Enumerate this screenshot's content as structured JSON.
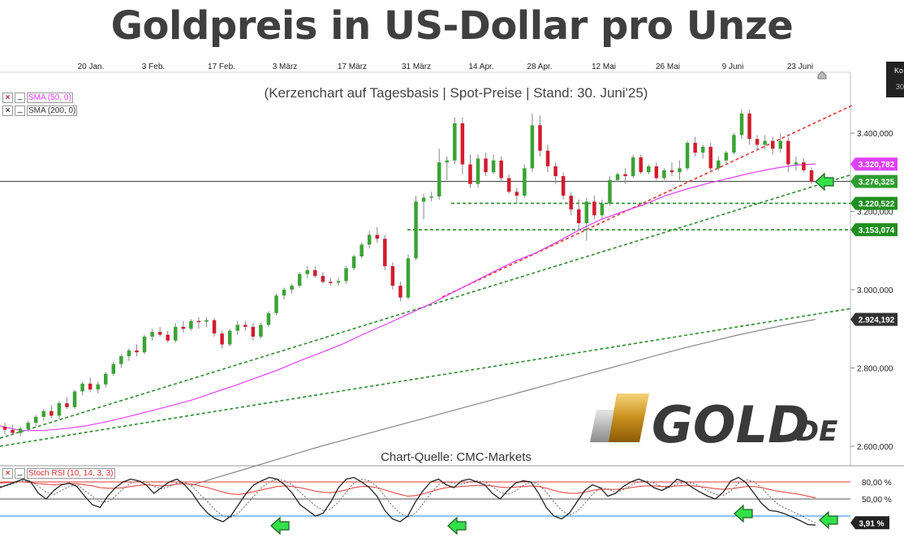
{
  "title": "Goldpreis in US-Dollar pro Unze",
  "subtitle": "(Kerzenchart auf Tagesbasis | Spot-Preise | Stand: 30. Juni'25)",
  "source": "Chart-Quelle: CMC-Markets",
  "logo_text": "GOLD",
  "logo_suffix": ".DE",
  "top_right_box": {
    "line1": "Ko",
    "line2": "30"
  },
  "legend": {
    "sma50": "SMA (50, 0)",
    "sma200": "SMA (200, 0)",
    "stoch": "Stoch RSI (10, 14, 3, 3)",
    "close_button": "×",
    "min_button": "_"
  },
  "chart_data": {
    "type": "candlestick",
    "x_tick_labels": [
      "20 Jan.",
      "3 Feb.",
      "17 Feb.",
      "3 März",
      "17 März",
      "31 März",
      "14 Apr.",
      "28 Apr.",
      "12 Mai",
      "26 Mai",
      "9 Juni",
      "23 Juni"
    ],
    "y_tick_labels": [
      "3.400,000",
      "3.200,000",
      "3.000,000",
      "2.800,000",
      "2.600,000"
    ],
    "y_ticks": [
      3400,
      3200,
      3000,
      2800,
      2600
    ],
    "ylim": [
      2580,
      3520
    ],
    "price_labels": [
      {
        "text": "3.320,782",
        "value": 3320.782,
        "color": "#e040fb",
        "role": "SMA 50"
      },
      {
        "text": "3.276,325",
        "value": 3276.325,
        "color": "#2e9e2e",
        "role": "Kurs"
      },
      {
        "text": "3.220,522",
        "value": 3220.522,
        "color": "#1f8f1f",
        "role": "Unterstützung"
      },
      {
        "text": "3.153,074",
        "value": 3153.074,
        "color": "#1f8f1f",
        "role": "Unterstützung"
      },
      {
        "text": "2.924,192",
        "value": 2924.192,
        "color": "#333333",
        "role": "SMA 200"
      }
    ],
    "candles": [
      {
        "o": 2650,
        "h": 2660,
        "l": 2630,
        "c": 2642
      },
      {
        "o": 2642,
        "h": 2655,
        "l": 2628,
        "c": 2634
      },
      {
        "o": 2634,
        "h": 2650,
        "l": 2625,
        "c": 2645
      },
      {
        "o": 2645,
        "h": 2665,
        "l": 2638,
        "c": 2660
      },
      {
        "o": 2660,
        "h": 2680,
        "l": 2652,
        "c": 2675
      },
      {
        "o": 2675,
        "h": 2695,
        "l": 2665,
        "c": 2690
      },
      {
        "o": 2690,
        "h": 2705,
        "l": 2672,
        "c": 2678
      },
      {
        "o": 2678,
        "h": 2715,
        "l": 2670,
        "c": 2710
      },
      {
        "o": 2710,
        "h": 2725,
        "l": 2695,
        "c": 2700
      },
      {
        "o": 2700,
        "h": 2745,
        "l": 2695,
        "c": 2740
      },
      {
        "o": 2740,
        "h": 2765,
        "l": 2730,
        "c": 2760
      },
      {
        "o": 2760,
        "h": 2775,
        "l": 2738,
        "c": 2745
      },
      {
        "o": 2745,
        "h": 2765,
        "l": 2735,
        "c": 2758
      },
      {
        "o": 2758,
        "h": 2790,
        "l": 2750,
        "c": 2785
      },
      {
        "o": 2785,
        "h": 2815,
        "l": 2780,
        "c": 2810
      },
      {
        "o": 2810,
        "h": 2835,
        "l": 2800,
        "c": 2830
      },
      {
        "o": 2830,
        "h": 2850,
        "l": 2818,
        "c": 2845
      },
      {
        "o": 2845,
        "h": 2860,
        "l": 2830,
        "c": 2840
      },
      {
        "o": 2840,
        "h": 2885,
        "l": 2835,
        "c": 2880
      },
      {
        "o": 2880,
        "h": 2900,
        "l": 2870,
        "c": 2892
      },
      {
        "o": 2892,
        "h": 2905,
        "l": 2880,
        "c": 2885
      },
      {
        "o": 2885,
        "h": 2895,
        "l": 2865,
        "c": 2870
      },
      {
        "o": 2870,
        "h": 2915,
        "l": 2865,
        "c": 2905
      },
      {
        "o": 2905,
        "h": 2920,
        "l": 2890,
        "c": 2900
      },
      {
        "o": 2900,
        "h": 2925,
        "l": 2895,
        "c": 2920
      },
      {
        "o": 2920,
        "h": 2930,
        "l": 2900,
        "c": 2918
      },
      {
        "o": 2918,
        "h": 2930,
        "l": 2905,
        "c": 2922
      },
      {
        "o": 2922,
        "h": 2928,
        "l": 2880,
        "c": 2888
      },
      {
        "o": 2888,
        "h": 2895,
        "l": 2850,
        "c": 2860
      },
      {
        "o": 2860,
        "h": 2900,
        "l": 2855,
        "c": 2895
      },
      {
        "o": 2895,
        "h": 2920,
        "l": 2885,
        "c": 2910
      },
      {
        "o": 2910,
        "h": 2920,
        "l": 2895,
        "c": 2905
      },
      {
        "o": 2905,
        "h": 2915,
        "l": 2870,
        "c": 2880
      },
      {
        "o": 2880,
        "h": 2915,
        "l": 2875,
        "c": 2910
      },
      {
        "o": 2910,
        "h": 2945,
        "l": 2905,
        "c": 2940
      },
      {
        "o": 2940,
        "h": 2990,
        "l": 2935,
        "c": 2985
      },
      {
        "o": 2985,
        "h": 3005,
        "l": 2975,
        "c": 3000
      },
      {
        "o": 3000,
        "h": 3015,
        "l": 2990,
        "c": 3010
      },
      {
        "o": 3010,
        "h": 3045,
        "l": 3005,
        "c": 3040
      },
      {
        "o": 3040,
        "h": 3060,
        "l": 3030,
        "c": 3050
      },
      {
        "o": 3050,
        "h": 3060,
        "l": 3030,
        "c": 3035
      },
      {
        "o": 3035,
        "h": 3045,
        "l": 3015,
        "c": 3020
      },
      {
        "o": 3020,
        "h": 3030,
        "l": 3010,
        "c": 3018
      },
      {
        "o": 3018,
        "h": 3030,
        "l": 3010,
        "c": 3022
      },
      {
        "o": 3022,
        "h": 3060,
        "l": 3015,
        "c": 3055
      },
      {
        "o": 3055,
        "h": 3090,
        "l": 3050,
        "c": 3085
      },
      {
        "o": 3085,
        "h": 3120,
        "l": 3080,
        "c": 3115
      },
      {
        "o": 3115,
        "h": 3150,
        "l": 3105,
        "c": 3140
      },
      {
        "o": 3140,
        "h": 3160,
        "l": 3120,
        "c": 3130
      },
      {
        "o": 3130,
        "h": 3140,
        "l": 3050,
        "c": 3060
      },
      {
        "o": 3060,
        "h": 3070,
        "l": 3000,
        "c": 3010
      },
      {
        "o": 3010,
        "h": 3020,
        "l": 2970,
        "c": 2980
      },
      {
        "o": 2980,
        "h": 3090,
        "l": 2975,
        "c": 3080
      },
      {
        "o": 3080,
        "h": 3240,
        "l": 3075,
        "c": 3225
      },
      {
        "o": 3225,
        "h": 3245,
        "l": 3180,
        "c": 3235
      },
      {
        "o": 3235,
        "h": 3250,
        "l": 3225,
        "c": 3238
      },
      {
        "o": 3238,
        "h": 3360,
        "l": 3230,
        "c": 3325
      },
      {
        "o": 3325,
        "h": 3340,
        "l": 3280,
        "c": 3330
      },
      {
        "o": 3330,
        "h": 3440,
        "l": 3320,
        "c": 3425
      },
      {
        "o": 3425,
        "h": 3440,
        "l": 3295,
        "c": 3320
      },
      {
        "o": 3320,
        "h": 3345,
        "l": 3260,
        "c": 3270
      },
      {
        "o": 3270,
        "h": 3345,
        "l": 3260,
        "c": 3335
      },
      {
        "o": 3335,
        "h": 3350,
        "l": 3290,
        "c": 3300
      },
      {
        "o": 3300,
        "h": 3345,
        "l": 3295,
        "c": 3330
      },
      {
        "o": 3330,
        "h": 3340,
        "l": 3275,
        "c": 3285
      },
      {
        "o": 3285,
        "h": 3295,
        "l": 3245,
        "c": 3250
      },
      {
        "o": 3250,
        "h": 3260,
        "l": 3220,
        "c": 3240
      },
      {
        "o": 3240,
        "h": 3320,
        "l": 3235,
        "c": 3310
      },
      {
        "o": 3310,
        "h": 3450,
        "l": 3300,
        "c": 3420
      },
      {
        "o": 3420,
        "h": 3445,
        "l": 3340,
        "c": 3355
      },
      {
        "o": 3355,
        "h": 3370,
        "l": 3300,
        "c": 3315
      },
      {
        "o": 3315,
        "h": 3325,
        "l": 3270,
        "c": 3290
      },
      {
        "o": 3290,
        "h": 3300,
        "l": 3230,
        "c": 3240
      },
      {
        "o": 3240,
        "h": 3250,
        "l": 3190,
        "c": 3205
      },
      {
        "o": 3205,
        "h": 3230,
        "l": 3150,
        "c": 3170
      },
      {
        "o": 3170,
        "h": 3235,
        "l": 3125,
        "c": 3225
      },
      {
        "o": 3225,
        "h": 3240,
        "l": 3180,
        "c": 3190
      },
      {
        "o": 3190,
        "h": 3230,
        "l": 3180,
        "c": 3220
      },
      {
        "o": 3220,
        "h": 3290,
        "l": 3215,
        "c": 3280
      },
      {
        "o": 3280,
        "h": 3300,
        "l": 3275,
        "c": 3295
      },
      {
        "o": 3295,
        "h": 3310,
        "l": 3270,
        "c": 3290
      },
      {
        "o": 3290,
        "h": 3345,
        "l": 3285,
        "c": 3338
      },
      {
        "o": 3338,
        "h": 3345,
        "l": 3295,
        "c": 3300
      },
      {
        "o": 3300,
        "h": 3320,
        "l": 3295,
        "c": 3315
      },
      {
        "o": 3315,
        "h": 3325,
        "l": 3280,
        "c": 3285
      },
      {
        "o": 3285,
        "h": 3310,
        "l": 3280,
        "c": 3305
      },
      {
        "o": 3305,
        "h": 3325,
        "l": 3290,
        "c": 3300
      },
      {
        "o": 3300,
        "h": 3330,
        "l": 3280,
        "c": 3310
      },
      {
        "o": 3310,
        "h": 3380,
        "l": 3305,
        "c": 3375
      },
      {
        "o": 3375,
        "h": 3390,
        "l": 3340,
        "c": 3350
      },
      {
        "o": 3350,
        "h": 3370,
        "l": 3335,
        "c": 3365
      },
      {
        "o": 3365,
        "h": 3375,
        "l": 3300,
        "c": 3310
      },
      {
        "o": 3310,
        "h": 3340,
        "l": 3305,
        "c": 3330
      },
      {
        "o": 3330,
        "h": 3355,
        "l": 3320,
        "c": 3350
      },
      {
        "o": 3350,
        "h": 3400,
        "l": 3345,
        "c": 3395
      },
      {
        "o": 3395,
        "h": 3460,
        "l": 3385,
        "c": 3450
      },
      {
        "o": 3450,
        "h": 3460,
        "l": 3370,
        "c": 3385
      },
      {
        "o": 3385,
        "h": 3395,
        "l": 3355,
        "c": 3370
      },
      {
        "o": 3370,
        "h": 3395,
        "l": 3360,
        "c": 3380
      },
      {
        "o": 3380,
        "h": 3390,
        "l": 3345,
        "c": 3360
      },
      {
        "o": 3360,
        "h": 3400,
        "l": 3350,
        "c": 3380
      },
      {
        "o": 3380,
        "h": 3390,
        "l": 3300,
        "c": 3320
      },
      {
        "o": 3320,
        "h": 3340,
        "l": 3305,
        "c": 3325
      },
      {
        "o": 3325,
        "h": 3335,
        "l": 3300,
        "c": 3305
      },
      {
        "o": 3305,
        "h": 3312,
        "l": 3270,
        "c": 3276
      }
    ],
    "sma50": [
      2652,
      2640,
      2640,
      2645,
      2652,
      2663,
      2676,
      2690,
      2704,
      2719,
      2738,
      2756,
      2776,
      2796,
      2819,
      2840,
      2862,
      2888,
      2912,
      2937,
      2962,
      2990,
      3018,
      3046,
      3073,
      3095,
      3123,
      3153,
      3179,
      3199,
      3217,
      3240,
      3257,
      3272,
      3285,
      3298,
      3309,
      3318,
      3321
    ],
    "sma200": [
      2500,
      2520,
      2540,
      2560,
      2580,
      2600,
      2618,
      2636,
      2654,
      2672,
      2690,
      2708,
      2726,
      2744,
      2762,
      2780,
      2798,
      2816,
      2834,
      2852,
      2868,
      2884,
      2898,
      2912,
      2924
    ],
    "trendlines": [
      {
        "name": "Trendlinie rot",
        "color": "#e53935",
        "from": [
          0.5,
          0.5
        ],
        "to": [
          1,
          1
        ]
      },
      {
        "name": "Trendlinie grün 1",
        "color": "#2e8b2e"
      },
      {
        "name": "Trendlinie grün 2",
        "color": "#2e8b2e"
      }
    ],
    "hlines": [
      {
        "value": 3276.325,
        "color": "#333333",
        "dash": false
      },
      {
        "value": 3220.522,
        "color": "#2e8b2e",
        "dash": true
      },
      {
        "value": 3153.074,
        "color": "#2e8b2e",
        "dash": true
      }
    ],
    "stoch_rsi": {
      "levels": [
        80,
        50,
        20
      ],
      "level_labels": [
        "80,00 %",
        "50,00 %"
      ],
      "current_label": "3,91 %",
      "current_value": 3.91,
      "k": [
        70,
        75,
        80,
        85,
        80,
        60,
        50,
        65,
        75,
        78,
        72,
        55,
        40,
        35,
        55,
        70,
        80,
        85,
        82,
        75,
        60,
        70,
        80,
        85,
        75,
        60,
        40,
        25,
        15,
        10,
        20,
        40,
        60,
        75,
        82,
        88,
        85,
        75,
        60,
        40,
        30,
        20,
        25,
        45,
        70,
        85,
        88,
        80,
        70,
        55,
        30,
        15,
        10,
        20,
        45,
        65,
        80,
        85,
        75,
        70,
        82,
        85,
        80,
        75,
        60,
        50,
        65,
        78,
        82,
        80,
        60,
        35,
        20,
        15,
        25,
        45,
        65,
        75,
        70,
        55,
        60,
        72,
        80,
        85,
        80,
        70,
        65,
        72,
        85,
        80,
        70,
        62,
        55,
        50,
        62,
        82,
        88,
        78,
        60,
        42,
        30,
        28,
        24,
        18,
        12,
        5,
        4
      ],
      "d": [
        72,
        74,
        78,
        82,
        82,
        72,
        62,
        58,
        65,
        72,
        75,
        65,
        55,
        45,
        45,
        55,
        68,
        78,
        82,
        80,
        72,
        68,
        72,
        78,
        80,
        72,
        58,
        45,
        30,
        20,
        18,
        25,
        40,
        55,
        70,
        80,
        85,
        82,
        75,
        62,
        50,
        38,
        30,
        32,
        45,
        62,
        78,
        85,
        82,
        72,
        55,
        38,
        25,
        18,
        25,
        42,
        60,
        75,
        80,
        78,
        76,
        80,
        82,
        80,
        72,
        62,
        58,
        64,
        74,
        80,
        76,
        62,
        45,
        30,
        22,
        28,
        42,
        58,
        70,
        68,
        62,
        66,
        74,
        80,
        82,
        78,
        72,
        70,
        76,
        80,
        78,
        72,
        64,
        58,
        56,
        64,
        78,
        84,
        80,
        70,
        55,
        42,
        34,
        28,
        22,
        14,
        8
      ],
      "red": [
        78,
        79,
        80,
        80,
        79,
        77,
        76,
        75,
        76,
        77,
        77,
        75,
        73,
        70,
        69,
        69,
        70,
        72,
        74,
        75,
        74,
        73,
        74,
        76,
        77,
        76,
        73,
        70,
        66,
        62,
        59,
        58,
        60,
        63,
        66,
        69,
        72,
        73,
        72,
        70,
        67,
        64,
        62,
        61,
        63,
        66,
        70,
        72,
        72,
        70,
        66,
        62,
        58,
        55,
        56,
        59,
        63,
        67,
        70,
        71,
        72,
        73,
        74,
        74,
        73,
        71,
        70,
        71,
        72,
        73,
        72,
        69,
        65,
        62,
        60,
        60,
        62,
        65,
        67,
        67,
        67,
        68,
        70,
        72,
        73,
        73,
        72,
        72,
        73,
        74,
        73,
        72,
        70,
        68,
        67,
        68,
        70,
        72,
        72,
        70,
        67,
        64,
        62,
        60,
        58,
        55,
        52
      ]
    }
  }
}
